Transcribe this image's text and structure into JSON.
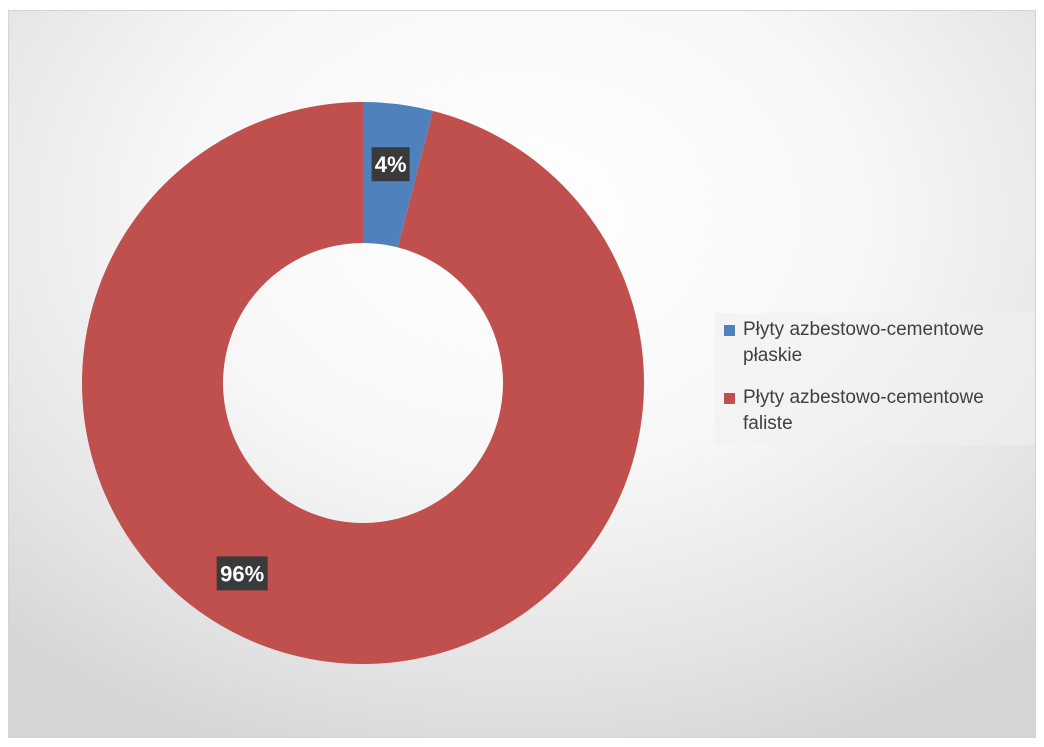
{
  "chart_data": {
    "type": "pie",
    "variant": "doughnut",
    "title": "",
    "categories": [
      "Płyty azbestowo-cementowe płaskie",
      "Płyty azbestowo-cementowe faliste"
    ],
    "values": [
      4,
      96
    ],
    "unit": "%",
    "data_labels": [
      "4%",
      "96%"
    ],
    "colors": [
      "#4f81bd",
      "#c0504d"
    ],
    "legend": {
      "position": "right",
      "entries": [
        {
          "label_line1": "Płyty azbestowo-cementowe",
          "label_line2": "płaskie"
        },
        {
          "label_line1": "Płyty azbestowo-cementowe",
          "label_line2": "faliste"
        }
      ]
    },
    "label_style": {
      "background": "#3a3a3a",
      "color": "#ffffff"
    },
    "background": {
      "center": "#ffffff",
      "edge": "#d5d5d5"
    }
  }
}
